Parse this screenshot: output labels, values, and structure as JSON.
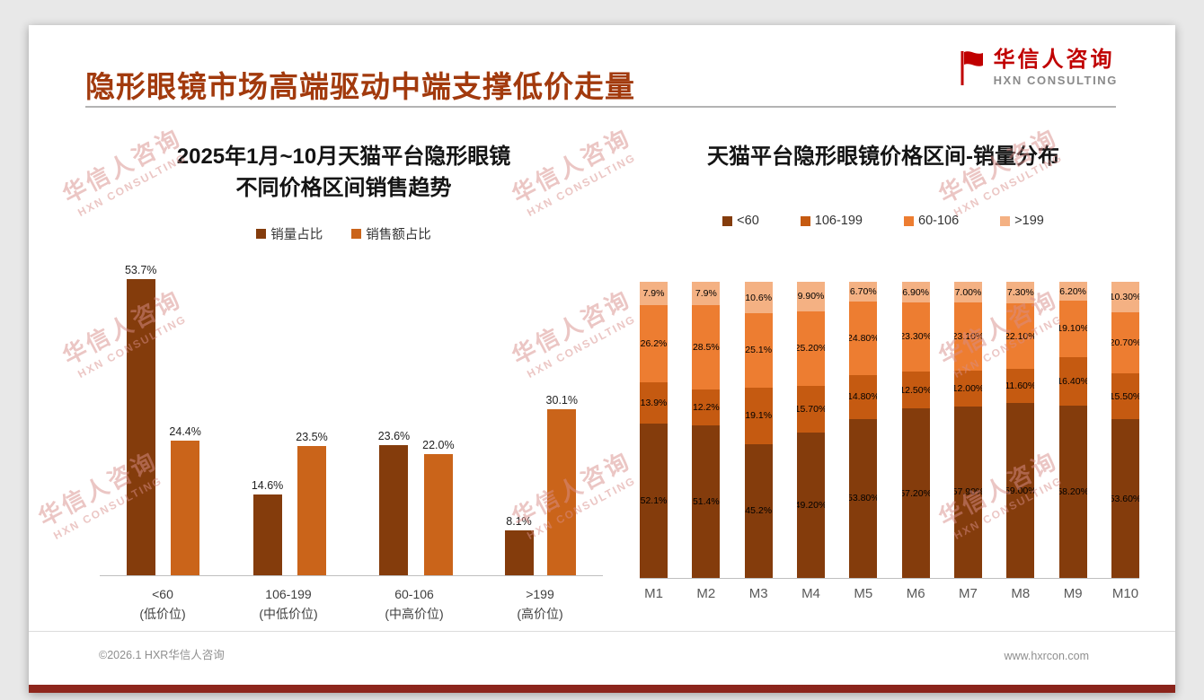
{
  "page": {
    "title": "隐形眼镜市场高端驱动中端支撑低价走量",
    "logo": {
      "name": "华信人咨询",
      "subtitle": "HXN CONSULTING",
      "accent_color": "#c00000"
    },
    "watermark": {
      "line1": "华信人咨询",
      "line2": "HXN CONSULTING"
    },
    "footer": {
      "left": "©2026.1 HXR华信人咨询",
      "right": "www.hxrcon.com"
    }
  },
  "colors": {
    "title": "#a23a0d",
    "dark_brown": "#843C0C",
    "mid_orange": "#C55A11",
    "orange": "#ED7D31",
    "light_orange": "#F4B183",
    "bottom_bar": "#8a241b"
  },
  "chart_data": [
    {
      "type": "bar",
      "title": "2025年1月~10月天猫平台隐形眼镜不同价格区间销售趋势",
      "title_lines": [
        "2025年1月~10月天猫平台隐形眼镜",
        "不同价格区间销售趋势"
      ],
      "categories": [
        "<60",
        "106-199",
        "60-106",
        ">199"
      ],
      "category_sublabels": [
        "(低价位)",
        "(中低价位)",
        "(中高价位)",
        "(高价位)"
      ],
      "series": [
        {
          "name": "销量占比",
          "color": "#843C0C",
          "values": [
            53.7,
            14.6,
            23.6,
            8.1
          ],
          "labels": [
            "53.7%",
            "14.6%",
            "23.6%",
            "8.1%"
          ]
        },
        {
          "name": "销售额占比",
          "color": "#CA641A",
          "values": [
            24.4,
            23.5,
            22.0,
            30.1
          ],
          "labels": [
            "24.4%",
            "23.5%",
            "22.0%",
            "30.1%"
          ]
        }
      ],
      "value_suffix": "%",
      "ylim": [
        0,
        55
      ],
      "y_axis_visible": false,
      "grid": false,
      "legend_position": "top"
    },
    {
      "type": "stacked-bar",
      "title": "天猫平台隐形眼镜价格区间-销量分布",
      "categories": [
        "M1",
        "M2",
        "M3",
        "M4",
        "M5",
        "M6",
        "M7",
        "M8",
        "M9",
        "M10"
      ],
      "series": [
        {
          "name": "<60",
          "color": "#843C0C",
          "values": [
            52.1,
            51.4,
            45.2,
            49.2,
            53.8,
            57.2,
            57.9,
            59.0,
            58.2,
            53.6
          ],
          "labels": [
            "52.1%",
            "51.4%",
            "45.2%",
            "49.20%",
            "53.80%",
            "57.20%",
            "57.90%",
            "59.00%",
            "58.20%",
            "53.60%"
          ]
        },
        {
          "name": "106-199",
          "color": "#C55A11",
          "values": [
            13.9,
            12.2,
            19.1,
            15.7,
            14.8,
            12.5,
            12.0,
            11.6,
            16.4,
            15.5
          ],
          "labels": [
            "13.9%",
            "12.2%",
            "19.1%",
            "15.70%",
            "14.80%",
            "12.50%",
            "12.00%",
            "11.60%",
            "16.40%",
            "15.50%"
          ]
        },
        {
          "name": "60-106",
          "color": "#ED7D31",
          "values": [
            26.2,
            28.5,
            25.1,
            25.2,
            24.8,
            23.3,
            23.1,
            22.1,
            19.1,
            20.7
          ],
          "labels": [
            "26.2%",
            "28.5%",
            "25.1%",
            "25.20%",
            "24.80%",
            "23.30%",
            "23.10%",
            "22.10%",
            "19.10%",
            "20.70%"
          ]
        },
        {
          "name": ">199",
          "color": "#F4B183",
          "values": [
            7.9,
            7.9,
            10.6,
            9.9,
            6.7,
            6.9,
            7.0,
            7.3,
            6.2,
            10.3
          ],
          "labels": [
            "7.9%",
            "7.9%",
            "10.6%",
            "9.90%",
            "6.70%",
            "6.90%",
            "7.00%",
            "7.30%",
            "6.20%",
            "10.30%"
          ]
        }
      ],
      "value_suffix": "%",
      "ylim": [
        0,
        100
      ],
      "y_axis_visible": false,
      "grid": false,
      "legend_position": "top"
    }
  ]
}
